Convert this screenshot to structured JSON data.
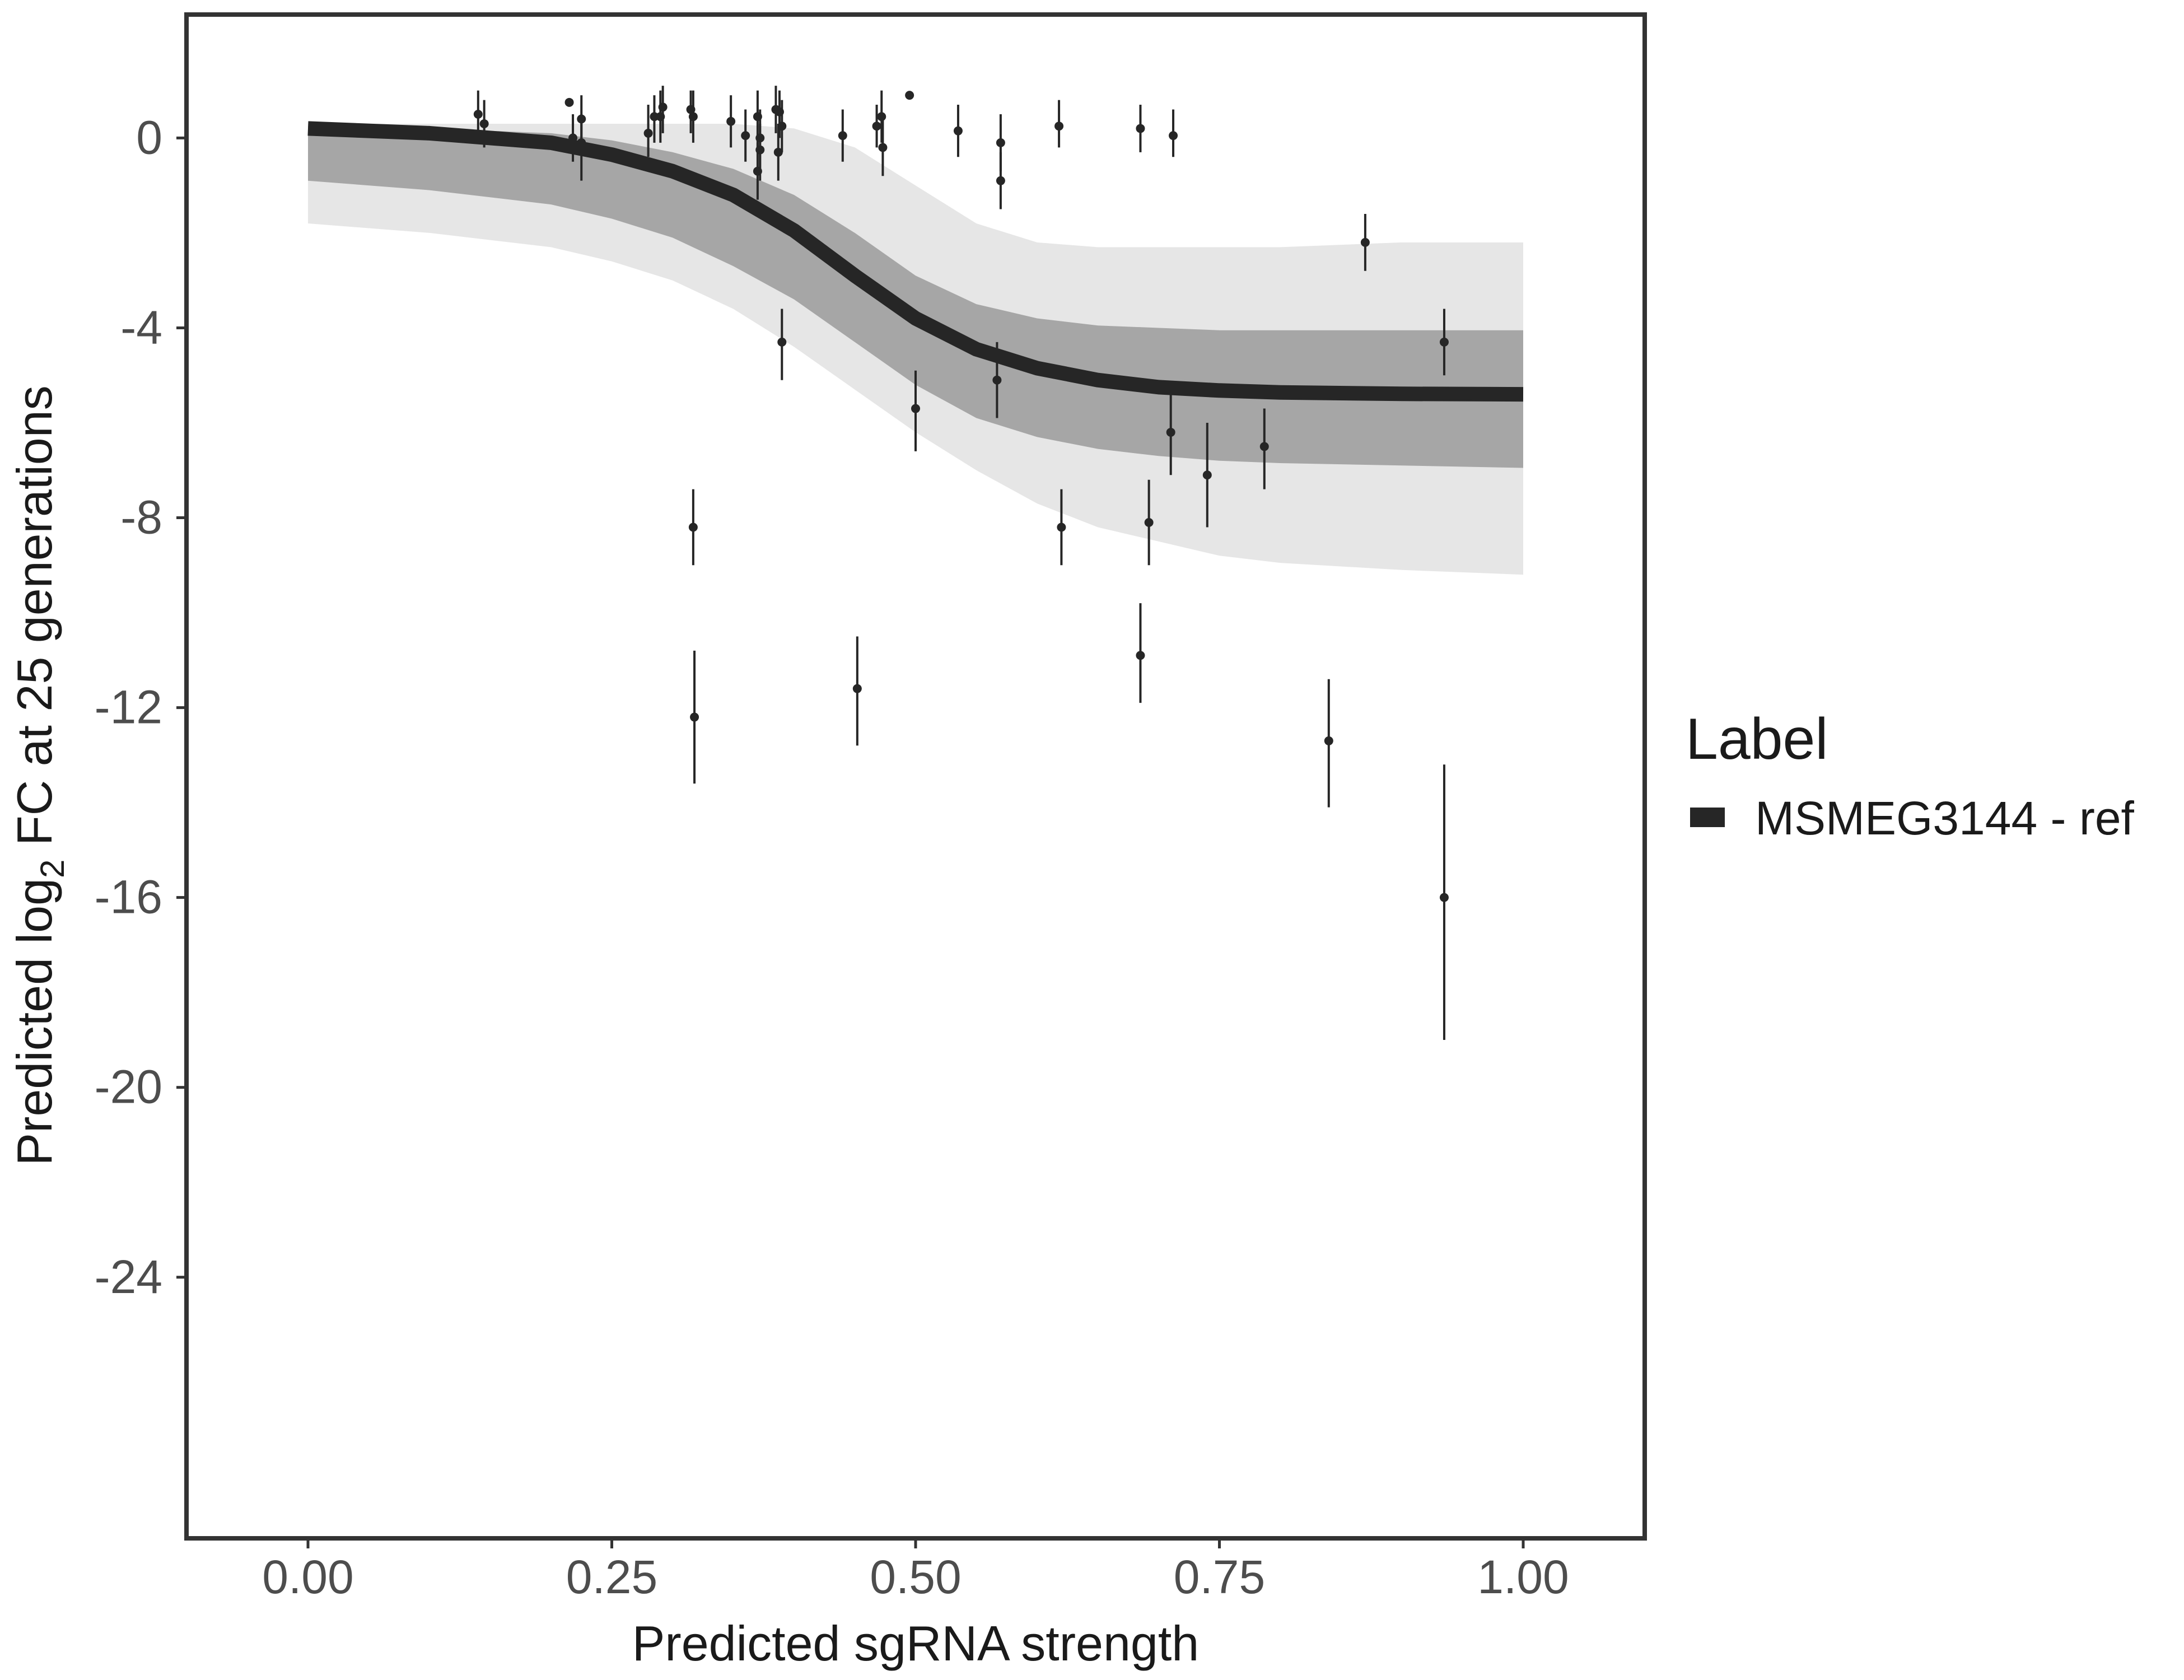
{
  "chart_data": {
    "type": "line",
    "xlabel": "Predicted sgRNA strength",
    "ylabel": {
      "prefix": "Predicted  log",
      "subscript": "2",
      "suffix": " FC at 25 generations"
    },
    "xlim": [
      -0.1,
      1.1
    ],
    "ylim": [
      -29.5,
      2.6
    ],
    "x_ticks": [
      0.0,
      0.25,
      0.5,
      0.75,
      1.0
    ],
    "x_tick_labels": [
      "0.00",
      "0.25",
      "0.50",
      "0.75",
      "1.00"
    ],
    "y_ticks": [
      0,
      -4,
      -8,
      -12,
      -16,
      -20,
      -24
    ],
    "y_tick_labels": [
      "0",
      "-4",
      "-8",
      "-12",
      "-16",
      "-20",
      "-24"
    ],
    "grid": false,
    "legend": {
      "title": "Label",
      "position": "right",
      "entries": [
        {
          "label": "MSMEG3144 - ref",
          "color": "#262626"
        }
      ]
    },
    "fit_curve": {
      "name": "MSMEG3144 - ref",
      "color": "#262626",
      "x": [
        0.0,
        0.1,
        0.2,
        0.25,
        0.3,
        0.35,
        0.4,
        0.45,
        0.5,
        0.55,
        0.6,
        0.65,
        0.7,
        0.75,
        0.8,
        0.9,
        1.0
      ],
      "y": [
        0.2,
        0.1,
        -0.1,
        -0.35,
        -0.7,
        -1.2,
        -1.95,
        -2.9,
        -3.8,
        -4.45,
        -4.85,
        -5.1,
        -5.25,
        -5.32,
        -5.36,
        -5.39,
        -5.4
      ]
    },
    "posterior_band": {
      "color": "#a6a6a6",
      "x": [
        0.0,
        0.1,
        0.2,
        0.25,
        0.3,
        0.35,
        0.4,
        0.45,
        0.5,
        0.55,
        0.6,
        0.65,
        0.7,
        0.75,
        0.8,
        0.9,
        1.0
      ],
      "upper": [
        0.3,
        0.3,
        0.3,
        0.3,
        0.3,
        0.3,
        0.2,
        -0.2,
        -1.0,
        -1.8,
        -2.2,
        -2.3,
        -2.3,
        -2.3,
        -2.3,
        -2.2,
        -2.2
      ],
      "lower": [
        -1.8,
        -2.0,
        -2.3,
        -2.6,
        -3.0,
        -3.6,
        -4.4,
        -5.3,
        -6.2,
        -7.0,
        -7.7,
        -8.2,
        -8.5,
        -8.8,
        -8.95,
        -9.1,
        -9.2
      ],
      "core_upper": [
        0.25,
        0.2,
        0.1,
        -0.05,
        -0.3,
        -0.65,
        -1.2,
        -2.0,
        -2.9,
        -3.5,
        -3.8,
        -3.95,
        -4.0,
        -4.05,
        -4.05,
        -4.05,
        -4.05
      ],
      "core_lower": [
        -0.9,
        -1.1,
        -1.4,
        -1.7,
        -2.1,
        -2.7,
        -3.4,
        -4.3,
        -5.2,
        -5.9,
        -6.3,
        -6.55,
        -6.7,
        -6.8,
        -6.85,
        -6.9,
        -6.95
      ]
    },
    "points": [
      {
        "x": 0.14,
        "y": 0.5,
        "lo": -0.1,
        "hi": 1.0
      },
      {
        "x": 0.145,
        "y": 0.3,
        "lo": -0.2,
        "hi": 0.8
      },
      {
        "x": 0.215,
        "y": 0.75,
        "lo": 0.75,
        "hi": 0.75
      },
      {
        "x": 0.218,
        "y": 0.0,
        "lo": -0.5,
        "hi": 0.5
      },
      {
        "x": 0.225,
        "y": 0.4,
        "lo": -0.1,
        "hi": 0.9
      },
      {
        "x": 0.225,
        "y": -0.1,
        "lo": -0.9,
        "hi": 0.5
      },
      {
        "x": 0.28,
        "y": 0.1,
        "lo": -0.4,
        "hi": 0.7
      },
      {
        "x": 0.285,
        "y": 0.45,
        "lo": -0.1,
        "hi": 0.9
      },
      {
        "x": 0.29,
        "y": 0.45,
        "lo": -0.1,
        "hi": 1.0
      },
      {
        "x": 0.292,
        "y": 0.65,
        "lo": 0.1,
        "hi": 1.1
      },
      {
        "x": 0.315,
        "y": 0.6,
        "lo": 0.1,
        "hi": 1.0
      },
      {
        "x": 0.317,
        "y": 0.45,
        "lo": -0.1,
        "hi": 1.0
      },
      {
        "x": 0.317,
        "y": -8.2,
        "lo": -9.0,
        "hi": -7.4
      },
      {
        "x": 0.318,
        "y": -12.2,
        "lo": -13.6,
        "hi": -10.8
      },
      {
        "x": 0.348,
        "y": 0.35,
        "lo": -0.2,
        "hi": 0.9
      },
      {
        "x": 0.36,
        "y": 0.05,
        "lo": -0.5,
        "hi": 0.6
      },
      {
        "x": 0.37,
        "y": 0.45,
        "lo": -0.2,
        "hi": 1.0
      },
      {
        "x": 0.37,
        "y": -0.7,
        "lo": -1.3,
        "hi": -0.1
      },
      {
        "x": 0.372,
        "y": 0.0,
        "lo": -0.7,
        "hi": 0.6
      },
      {
        "x": 0.372,
        "y": -0.25,
        "lo": -0.9,
        "hi": 0.3
      },
      {
        "x": 0.385,
        "y": 0.6,
        "lo": 0.1,
        "hi": 1.1
      },
      {
        "x": 0.387,
        "y": -0.3,
        "lo": -0.9,
        "hi": 0.3
      },
      {
        "x": 0.388,
        "y": 0.55,
        "lo": 0.0,
        "hi": 1.0
      },
      {
        "x": 0.39,
        "y": 0.25,
        "lo": -0.3,
        "hi": 0.8
      },
      {
        "x": 0.39,
        "y": -4.3,
        "lo": -5.1,
        "hi": -3.6
      },
      {
        "x": 0.44,
        "y": 0.05,
        "lo": -0.5,
        "hi": 0.6
      },
      {
        "x": 0.452,
        "y": -11.6,
        "lo": -12.8,
        "hi": -10.5
      },
      {
        "x": 0.468,
        "y": 0.25,
        "lo": -0.2,
        "hi": 0.7
      },
      {
        "x": 0.472,
        "y": 0.45,
        "lo": -0.1,
        "hi": 1.0
      },
      {
        "x": 0.473,
        "y": -0.2,
        "lo": -0.8,
        "hi": 0.4
      },
      {
        "x": 0.495,
        "y": 0.9,
        "lo": 0.9,
        "hi": 0.9
      },
      {
        "x": 0.5,
        "y": -5.7,
        "lo": -6.6,
        "hi": -4.9
      },
      {
        "x": 0.535,
        "y": 0.15,
        "lo": -0.4,
        "hi": 0.7
      },
      {
        "x": 0.567,
        "y": -5.1,
        "lo": -5.9,
        "hi": -4.3
      },
      {
        "x": 0.57,
        "y": -0.1,
        "lo": -0.7,
        "hi": 0.5
      },
      {
        "x": 0.57,
        "y": -0.9,
        "lo": -1.5,
        "hi": -0.3
      },
      {
        "x": 0.618,
        "y": 0.25,
        "lo": -0.2,
        "hi": 0.8
      },
      {
        "x": 0.62,
        "y": -8.2,
        "lo": -9.0,
        "hi": -7.4
      },
      {
        "x": 0.685,
        "y": 0.2,
        "lo": -0.3,
        "hi": 0.7
      },
      {
        "x": 0.685,
        "y": -10.9,
        "lo": -11.9,
        "hi": -9.8
      },
      {
        "x": 0.692,
        "y": -8.1,
        "lo": -9.0,
        "hi": -7.2
      },
      {
        "x": 0.71,
        "y": -6.2,
        "lo": -7.1,
        "hi": -5.4
      },
      {
        "x": 0.712,
        "y": 0.05,
        "lo": -0.4,
        "hi": 0.6
      },
      {
        "x": 0.74,
        "y": -7.1,
        "lo": -8.2,
        "hi": -6.0
      },
      {
        "x": 0.787,
        "y": -6.5,
        "lo": -7.4,
        "hi": -5.7
      },
      {
        "x": 0.84,
        "y": -12.7,
        "lo": -14.1,
        "hi": -11.4
      },
      {
        "x": 0.87,
        "y": -2.2,
        "lo": -2.8,
        "hi": -1.6
      },
      {
        "x": 0.935,
        "y": -4.3,
        "lo": -5.0,
        "hi": -3.6
      },
      {
        "x": 0.935,
        "y": -16.0,
        "lo": -19.0,
        "hi": -13.2
      }
    ]
  }
}
